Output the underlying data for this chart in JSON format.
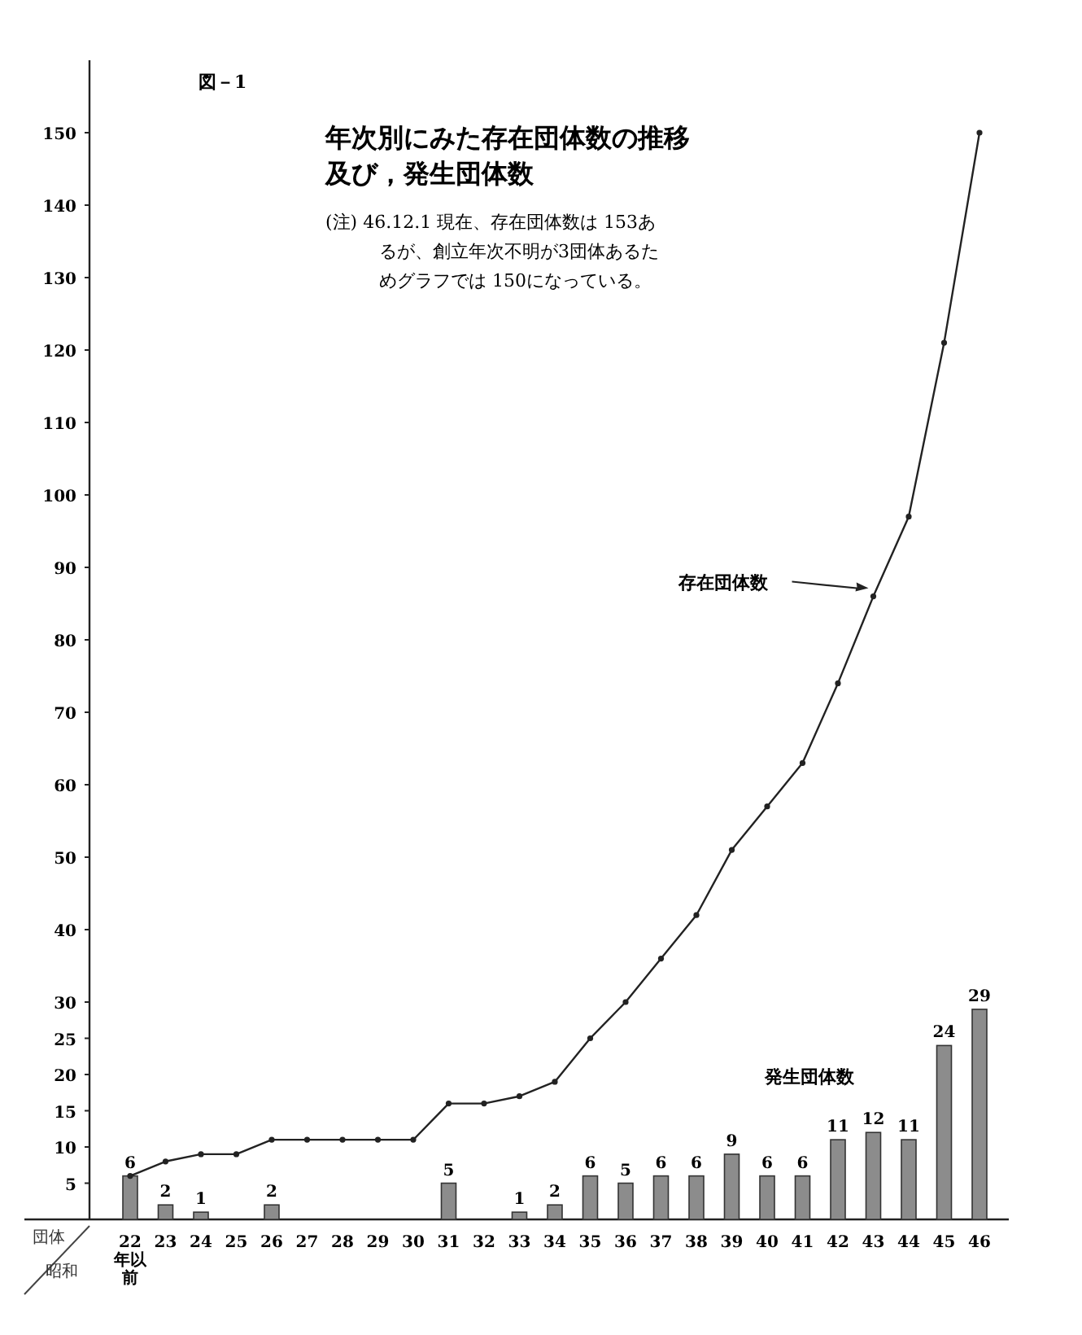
{
  "chart_data": {
    "type": "bar",
    "title": "年次別にみた存在団体数の推移及び，発生団体数",
    "annotations": [
      "図－1",
      "(注) 46.12.1 現在、存在団体数は 153あるが、創立年次不明が3団体あるためグラフでは 150になっている。"
    ],
    "xlabel": "昭和",
    "ylabel": "団体",
    "categories": [
      "22年以前",
      "23",
      "24",
      "25",
      "26",
      "27",
      "28",
      "29",
      "30",
      "31",
      "32",
      "33",
      "34",
      "35",
      "36",
      "37",
      "38",
      "39",
      "40",
      "41",
      "42",
      "43",
      "44",
      "45",
      "46"
    ],
    "series": [
      {
        "name": "発生団体数",
        "color": "#8c8c8c",
        "values": [
          6,
          2,
          1,
          0,
          2,
          0,
          0,
          0,
          0,
          5,
          0,
          1,
          2,
          6,
          5,
          6,
          6,
          9,
          6,
          6,
          11,
          12,
          11,
          24,
          29
        ],
        "value_labels": [
          "6",
          "2",
          "1",
          null,
          "2",
          null,
          null,
          null,
          null,
          "5",
          null,
          "1",
          "2",
          "6",
          "5",
          "6",
          "6",
          "9",
          "6",
          "6",
          "11",
          "12",
          "11",
          "24",
          "29"
        ]
      },
      {
        "name": "存在団体数",
        "type": "line",
        "color": "#222222",
        "marker": "circle",
        "values": [
          6,
          8,
          9,
          9,
          11,
          11,
          11,
          11,
          11,
          16,
          16,
          17,
          19,
          25,
          30,
          36,
          42,
          51,
          57,
          63,
          74,
          86,
          97,
          121,
          150
        ]
      }
    ],
    "ylim": [
      0,
      160
    ],
    "yticks": [
      5,
      10,
      15,
      20,
      25,
      30,
      40,
      50,
      60,
      70,
      80,
      90,
      100,
      110,
      120,
      130,
      140,
      150
    ],
    "grid": false,
    "legend": "right"
  }
}
